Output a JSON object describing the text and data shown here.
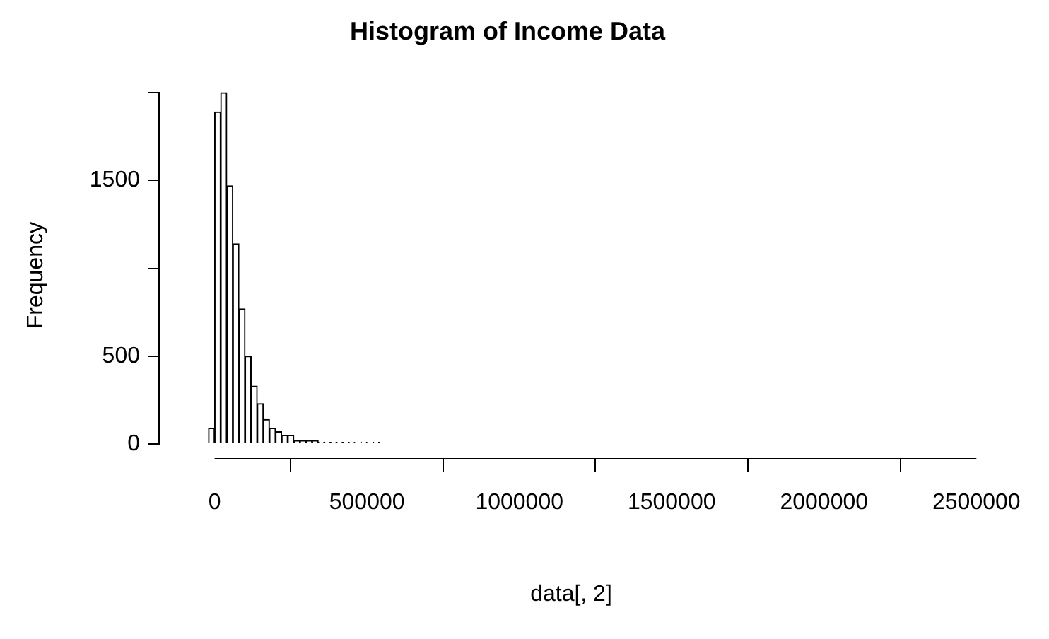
{
  "chart_data": {
    "type": "histogram",
    "title": "Histogram of Income Data",
    "xlabel": "data[, 2]",
    "ylabel": "Frequency",
    "bins": [
      -80000,
      -60000,
      -40000,
      -20000,
      0,
      20000,
      40000,
      60000,
      80000,
      100000,
      120000,
      140000,
      160000,
      180000,
      200000,
      220000,
      240000,
      260000,
      280000,
      300000,
      320000,
      340000,
      360000,
      380000,
      400000,
      420000,
      440000,
      460000,
      480000,
      500000,
      520000,
      540000,
      560000,
      580000,
      600000,
      620000,
      640000,
      660000,
      680000,
      700000,
      720000,
      740000,
      760000,
      780000,
      800000,
      820000,
      840000,
      860000,
      880000,
      900000,
      920000,
      940000,
      960000,
      980000,
      1000000,
      1020000,
      1040000,
      1060000,
      1080000,
      1100000,
      1120000,
      1140000,
      1160000,
      1180000,
      1200000,
      1220000,
      1240000,
      1260000,
      1280000,
      1300000,
      1320000,
      1340000,
      1360000,
      1380000,
      1400000,
      1420000,
      1440000,
      1460000,
      1480000,
      1500000,
      1520000,
      1540000,
      1560000,
      1580000,
      1600000,
      1620000,
      1640000,
      1660000,
      1680000,
      1700000,
      1720000,
      1740000,
      1760000,
      1780000,
      1800000,
      1820000,
      1840000,
      1860000,
      1880000,
      1900000,
      1920000,
      1940000,
      1960000,
      1980000,
      2000000,
      2020000,
      2040000,
      2060000,
      2080000,
      2100000,
      2120000,
      2140000,
      2160000,
      2180000,
      2200000,
      2220000,
      2240000,
      2260000,
      2280000,
      2300000,
      2320000,
      2340000,
      2360000,
      2380000,
      2400000,
      2420000
    ],
    "values": [
      0,
      0,
      0,
      90,
      1890,
      2000,
      1470,
      1140,
      770,
      500,
      330,
      230,
      140,
      90,
      70,
      50,
      50,
      20,
      20,
      20,
      20,
      10,
      10,
      10,
      10,
      10,
      10,
      0,
      10,
      0,
      10,
      0,
      0,
      0,
      0,
      0,
      0,
      0,
      0,
      0,
      0,
      0,
      0,
      0,
      0,
      0,
      0,
      0,
      0,
      0,
      0,
      0,
      0,
      0,
      0,
      0,
      0,
      0,
      0,
      0,
      0,
      0,
      0,
      0,
      0,
      0,
      0,
      0,
      0,
      0,
      0,
      0,
      0,
      0,
      0,
      0,
      0,
      0,
      0,
      0,
      0,
      0,
      0,
      0,
      0,
      0,
      0,
      0,
      0,
      0,
      0,
      0,
      0,
      0,
      0,
      0,
      0,
      0,
      0,
      0,
      0,
      0,
      0,
      0,
      0,
      0,
      0,
      0,
      0,
      0,
      0,
      0,
      0,
      0,
      0,
      0,
      0,
      0,
      0,
      0,
      0,
      0,
      0,
      0,
      0
    ],
    "color": "#ffffff",
    "xlim": [
      -180000,
      2520000
    ],
    "xticks": [
      0,
      500000,
      1000000,
      1500000,
      2000000,
      2500000
    ],
    "ylim": [
      -80,
      2000
    ],
    "yticks": [
      0,
      500,
      {
        "value": 1000,
        "label": null
      },
      1500,
      {
        "value": 2000,
        "label": null
      }
    ],
    "grid": false,
    "legend": false
  }
}
